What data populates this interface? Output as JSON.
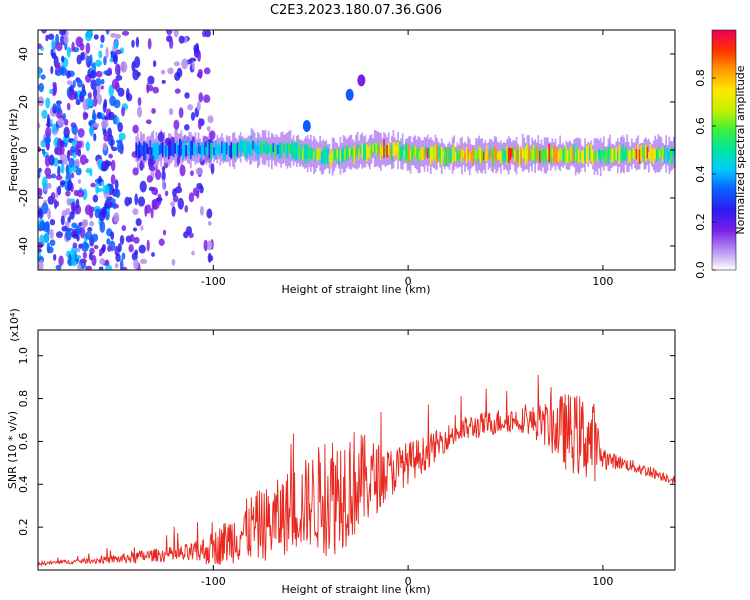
{
  "title": "C2E3.2023.180.07.36.G06",
  "colors": {
    "snr_line": "#e8281e",
    "axis": "#000000",
    "colormap": [
      "#ffffff",
      "#b48cf0",
      "#7a1fe8",
      "#2a1cf0",
      "#0a5cff",
      "#00c8ff",
      "#00e6a0",
      "#3cf03c",
      "#c8f000",
      "#ffe600",
      "#ff9a00",
      "#ff3000",
      "#e8005a"
    ]
  },
  "chart_data": [
    {
      "type": "heatmap",
      "title": "",
      "xlabel": "Height of straight line (km)",
      "ylabel": "Frequency (Hz)",
      "xlim": [
        -190,
        137
      ],
      "ylim": [
        -50,
        50
      ],
      "xticks": [
        -100,
        0,
        100
      ],
      "yticks": [
        -40,
        -20,
        0,
        20,
        40
      ],
      "grid": false,
      "colorbar": {
        "label": "Normalized spectral amplitude",
        "range": [
          0.0,
          1.0
        ],
        "ticks": [
          0.0,
          0.2,
          0.4,
          0.6,
          0.8
        ]
      },
      "ridge": [
        {
          "x": -140,
          "y": 0,
          "amp": 0.35
        },
        {
          "x": -120,
          "y": 0,
          "amp": 0.4
        },
        {
          "x": -100,
          "y": 0,
          "amp": 0.45
        },
        {
          "x": -80,
          "y": 1,
          "amp": 0.5
        },
        {
          "x": -60,
          "y": 0,
          "amp": 0.55
        },
        {
          "x": -40,
          "y": -3,
          "amp": 0.7
        },
        {
          "x": -20,
          "y": 0,
          "amp": 0.8
        },
        {
          "x": 0,
          "y": -1,
          "amp": 0.9
        },
        {
          "x": 20,
          "y": -2,
          "amp": 0.75
        },
        {
          "x": 40,
          "y": -2,
          "amp": 0.85
        },
        {
          "x": 60,
          "y": -2,
          "amp": 0.85
        },
        {
          "x": 80,
          "y": -2,
          "amp": 0.8
        },
        {
          "x": 100,
          "y": -2,
          "amp": 0.6
        },
        {
          "x": 120,
          "y": -2,
          "amp": 0.9
        },
        {
          "x": 137,
          "y": -2,
          "amp": 0.5
        }
      ],
      "features": [
        {
          "x": -52,
          "y": 10,
          "amp": 0.3
        },
        {
          "x": -30,
          "y": 23,
          "amp": 0.3
        },
        {
          "x": -24,
          "y": 29,
          "amp": 0.2
        }
      ]
    },
    {
      "type": "line",
      "title": "",
      "xlabel": "Height of straight line (km)",
      "ylabel": "SNR (10 * v/v)",
      "y_multiplier": "(x10⁴)",
      "xlim": [
        -190,
        137
      ],
      "ylim": [
        0,
        1.12
      ],
      "xticks": [
        -100,
        0,
        100
      ],
      "yticks": [
        0.2,
        0.4,
        0.6,
        0.8,
        1.0
      ],
      "grid": false,
      "series": [
        {
          "x": [
            -190,
            -170,
            -150,
            -140,
            -130,
            -120,
            -110,
            -100,
            -90,
            -80,
            -70,
            -60,
            -50,
            -40,
            -30,
            -20,
            -10,
            0,
            10,
            20,
            30,
            40,
            50,
            60,
            70,
            80,
            90,
            95,
            100,
            110,
            120,
            137
          ],
          "y": [
            0.03,
            0.04,
            0.05,
            0.06,
            0.07,
            0.07,
            0.08,
            0.1,
            0.15,
            0.2,
            0.22,
            0.28,
            0.32,
            0.35,
            0.4,
            0.42,
            0.45,
            0.5,
            0.55,
            0.62,
            0.66,
            0.68,
            0.7,
            0.7,
            0.68,
            0.65,
            0.62,
            0.6,
            0.52,
            0.5,
            0.47,
            0.42
          ],
          "noise": [
            0.01,
            0.01,
            0.02,
            0.03,
            0.03,
            0.04,
            0.05,
            0.08,
            0.12,
            0.16,
            0.18,
            0.2,
            0.22,
            0.3,
            0.28,
            0.2,
            0.12,
            0.1,
            0.08,
            0.06,
            0.06,
            0.06,
            0.06,
            0.06,
            0.1,
            0.18,
            0.2,
            0.2,
            0.05,
            0.03,
            0.03,
            0.02
          ]
        }
      ]
    }
  ]
}
